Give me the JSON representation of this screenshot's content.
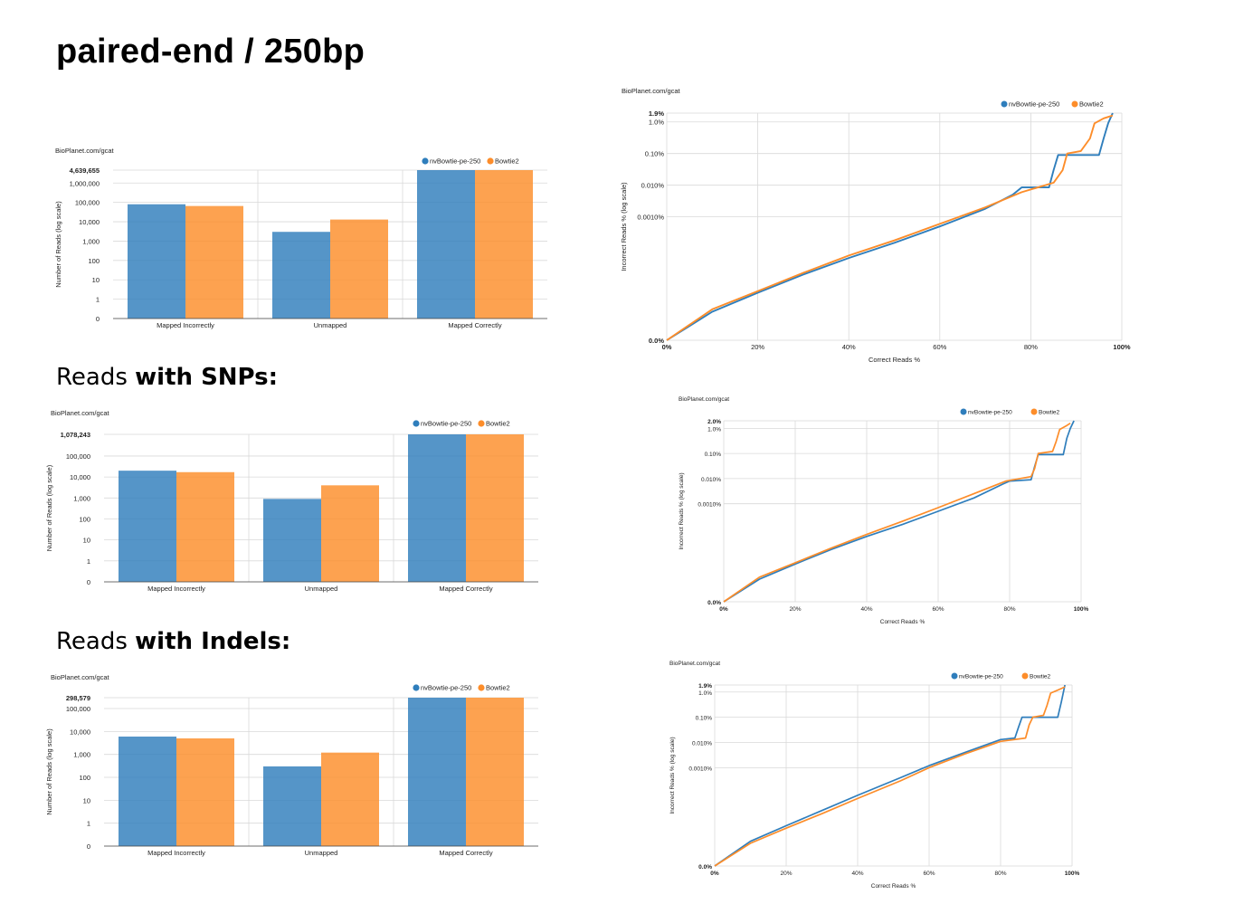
{
  "page": {
    "title": "paired-end / 250bp",
    "sections": [
      {
        "prefix": "Reads ",
        "bold": "with SNPs:"
      },
      {
        "prefix": "Reads ",
        "bold": "with Indels:"
      }
    ]
  },
  "colors": {
    "nvBowtie": "#2f7ebc",
    "Bowtie2": "#fd8d2a",
    "grid": "#d9d9d9",
    "axis": "#444444"
  },
  "chart_data": [
    {
      "id": "bar-all",
      "type": "bar",
      "watermark": "BioPlanet.com/gcat",
      "ylabel": "Number of Reads (log scale)",
      "yscale": "log",
      "yticks": [
        "4,639,655",
        "1,000,000",
        "100,000",
        "10,000",
        "1,000",
        "100",
        "10",
        "1",
        "0"
      ],
      "categories": [
        "Mapped Incorrectly",
        "Unmapped",
        "Mapped Correctly"
      ],
      "series": [
        {
          "name": "nvBowtie-pe-250",
          "values": [
            80000,
            3000,
            4639655
          ]
        },
        {
          "name": "Bowtie2",
          "values": [
            65000,
            13000,
            4639655
          ]
        }
      ],
      "ymax": 4639655,
      "legend": "top-right"
    },
    {
      "id": "bar-snps",
      "type": "bar",
      "watermark": "BioPlanet.com/gcat",
      "ylabel": "Number of Reads (log scale)",
      "yscale": "log",
      "yticks": [
        "1,078,243",
        "100,000",
        "10,000",
        "1,000",
        "100",
        "10",
        "1",
        "0"
      ],
      "categories": [
        "Mapped Incorrectly",
        "Unmapped",
        "Mapped Correctly"
      ],
      "series": [
        {
          "name": "nvBowtie-pe-250",
          "values": [
            20000,
            900,
            1078243
          ]
        },
        {
          "name": "Bowtie2",
          "values": [
            17000,
            4000,
            1078243
          ]
        }
      ],
      "ymax": 1078243,
      "legend": "top-right"
    },
    {
      "id": "bar-indels",
      "type": "bar",
      "watermark": "BioPlanet.com/gcat",
      "ylabel": "Number of Reads (log scale)",
      "yscale": "log",
      "yticks": [
        "298,579",
        "100,000",
        "10,000",
        "1,000",
        "100",
        "10",
        "1",
        "0"
      ],
      "categories": [
        "Mapped Incorrectly",
        "Unmapped",
        "Mapped Correctly"
      ],
      "series": [
        {
          "name": "nvBowtie-pe-250",
          "values": [
            6000,
            300,
            298579
          ]
        },
        {
          "name": "Bowtie2",
          "values": [
            5000,
            1200,
            298579
          ]
        }
      ],
      "ymax": 298579,
      "legend": "top-right"
    },
    {
      "id": "line-all",
      "type": "line",
      "watermark": "BioPlanet.com/gcat",
      "xlabel": "Correct Reads %",
      "ylabel": "Incorrect Reads % (log scale)",
      "yscale": "log",
      "yticks": [
        {
          "label": "1.9%",
          "value": 1.9,
          "bold": true
        },
        {
          "label": "1.0%",
          "value": 1.0
        },
        {
          "label": "0.10%",
          "value": 0.1
        },
        {
          "label": "0.010%",
          "value": 0.01
        },
        {
          "label": "0.0010%",
          "value": 0.001
        },
        {
          "label": "0.0%",
          "value": 0,
          "bold": true
        }
      ],
      "xticks": [
        "0%",
        "20%",
        "40%",
        "60%",
        "80%",
        "100%"
      ],
      "series": [
        {
          "name": "nvBowtie-pe-250",
          "points": [
            [
              0,
              0
            ],
            [
              10,
              1e-06
            ],
            [
              20,
              4e-06
            ],
            [
              30,
              1.5e-05
            ],
            [
              40,
              5e-05
            ],
            [
              50,
              0.00015
            ],
            [
              60,
              0.0005
            ],
            [
              70,
              0.0018
            ],
            [
              76,
              0.005
            ],
            [
              78,
              0.0085
            ],
            [
              84,
              0.0085
            ],
            [
              85,
              0.03
            ],
            [
              86,
              0.09
            ],
            [
              95,
              0.09
            ],
            [
              96,
              0.3
            ],
            [
              97,
              0.9
            ],
            [
              98,
              1.9
            ]
          ]
        },
        {
          "name": "Bowtie2",
          "points": [
            [
              0,
              0
            ],
            [
              10,
              1.2e-06
            ],
            [
              20,
              4.5e-06
            ],
            [
              30,
              1.7e-05
            ],
            [
              40,
              6e-05
            ],
            [
              50,
              0.00018
            ],
            [
              60,
              0.0006
            ],
            [
              70,
              0.002
            ],
            [
              78,
              0.006
            ],
            [
              85,
              0.012
            ],
            [
              87,
              0.03
            ],
            [
              88,
              0.1
            ],
            [
              91,
              0.12
            ],
            [
              93,
              0.3
            ],
            [
              94,
              0.9
            ],
            [
              96,
              1.3
            ],
            [
              98,
              1.6
            ]
          ]
        }
      ],
      "legend": "top-right"
    },
    {
      "id": "line-snps",
      "type": "line",
      "watermark": "BioPlanet.com/gcat",
      "xlabel": "Correct Reads %",
      "ylabel": "Incorrect Reads % (log scale)",
      "yscale": "log",
      "yticks": [
        {
          "label": "2.0%",
          "value": 2.0,
          "bold": true
        },
        {
          "label": "1.0%",
          "value": 1.0
        },
        {
          "label": "0.10%",
          "value": 0.1
        },
        {
          "label": "0.010%",
          "value": 0.01
        },
        {
          "label": "0.0010%",
          "value": 0.001
        },
        {
          "label": "0.0%",
          "value": 0,
          "bold": true
        }
      ],
      "xticks": [
        "0%",
        "20%",
        "40%",
        "60%",
        "80%",
        "100%"
      ],
      "series": [
        {
          "name": "nvBowtie-pe-250",
          "points": [
            [
              0,
              0
            ],
            [
              10,
              1e-06
            ],
            [
              20,
              4e-06
            ],
            [
              30,
              1.5e-05
            ],
            [
              40,
              5e-05
            ],
            [
              50,
              0.00015
            ],
            [
              60,
              0.0005
            ],
            [
              70,
              0.0017
            ],
            [
              78,
              0.006
            ],
            [
              80,
              0.008
            ],
            [
              86,
              0.009
            ],
            [
              87,
              0.03
            ],
            [
              88,
              0.09
            ],
            [
              95,
              0.09
            ],
            [
              96,
              0.4
            ],
            [
              97,
              1.0
            ],
            [
              98,
              2.0
            ]
          ]
        },
        {
          "name": "Bowtie2",
          "points": [
            [
              0,
              0
            ],
            [
              10,
              1.2e-06
            ],
            [
              20,
              4.5e-06
            ],
            [
              30,
              1.7e-05
            ],
            [
              40,
              6e-05
            ],
            [
              50,
              0.0002
            ],
            [
              60,
              0.0007
            ],
            [
              70,
              0.0025
            ],
            [
              79,
              0.008
            ],
            [
              86,
              0.012
            ],
            [
              87,
              0.025
            ],
            [
              88,
              0.1
            ],
            [
              92,
              0.12
            ],
            [
              93,
              0.3
            ],
            [
              94,
              0.9
            ],
            [
              96,
              1.3
            ],
            [
              97,
              1.6
            ]
          ]
        }
      ],
      "legend": "top-right"
    },
    {
      "id": "line-indels",
      "type": "line",
      "watermark": "BioPlanet.com/gcat",
      "xlabel": "Correct Reads %",
      "ylabel": "Incorrect Reads % (log scale)",
      "yscale": "log",
      "yticks": [
        {
          "label": "1.9%",
          "value": 1.9,
          "bold": true
        },
        {
          "label": "1.0%",
          "value": 1.0
        },
        {
          "label": "0.10%",
          "value": 0.1
        },
        {
          "label": "0.010%",
          "value": 0.01
        },
        {
          "label": "0.0010%",
          "value": 0.001
        },
        {
          "label": "0.0%",
          "value": 0,
          "bold": true
        }
      ],
      "xticks": [
        "0%",
        "20%",
        "40%",
        "60%",
        "80%",
        "100%"
      ],
      "series": [
        {
          "name": "nvBowtie-pe-250",
          "points": [
            [
              0,
              0
            ],
            [
              10,
              1.2e-06
            ],
            [
              20,
              5e-06
            ],
            [
              30,
              2e-05
            ],
            [
              40,
              8e-05
            ],
            [
              52,
              0.0004
            ],
            [
              60,
              0.0012
            ],
            [
              70,
              0.004
            ],
            [
              80,
              0.013
            ],
            [
              84,
              0.015
            ],
            [
              85,
              0.04
            ],
            [
              86,
              0.1
            ],
            [
              96,
              0.1
            ],
            [
              97,
              0.4
            ],
            [
              98,
              1.9
            ]
          ]
        },
        {
          "name": "Bowtie2",
          "points": [
            [
              0,
              0
            ],
            [
              10,
              1e-06
            ],
            [
              20,
              4e-06
            ],
            [
              30,
              1.5e-05
            ],
            [
              40,
              6e-05
            ],
            [
              52,
              0.0003
            ],
            [
              60,
              0.001
            ],
            [
              70,
              0.0035
            ],
            [
              80,
              0.011
            ],
            [
              87,
              0.015
            ],
            [
              88,
              0.05
            ],
            [
              89,
              0.1
            ],
            [
              92,
              0.12
            ],
            [
              93,
              0.3
            ],
            [
              94,
              0.9
            ],
            [
              96,
              1.2
            ],
            [
              98,
              1.6
            ]
          ]
        }
      ],
      "legend": "top-right"
    }
  ]
}
